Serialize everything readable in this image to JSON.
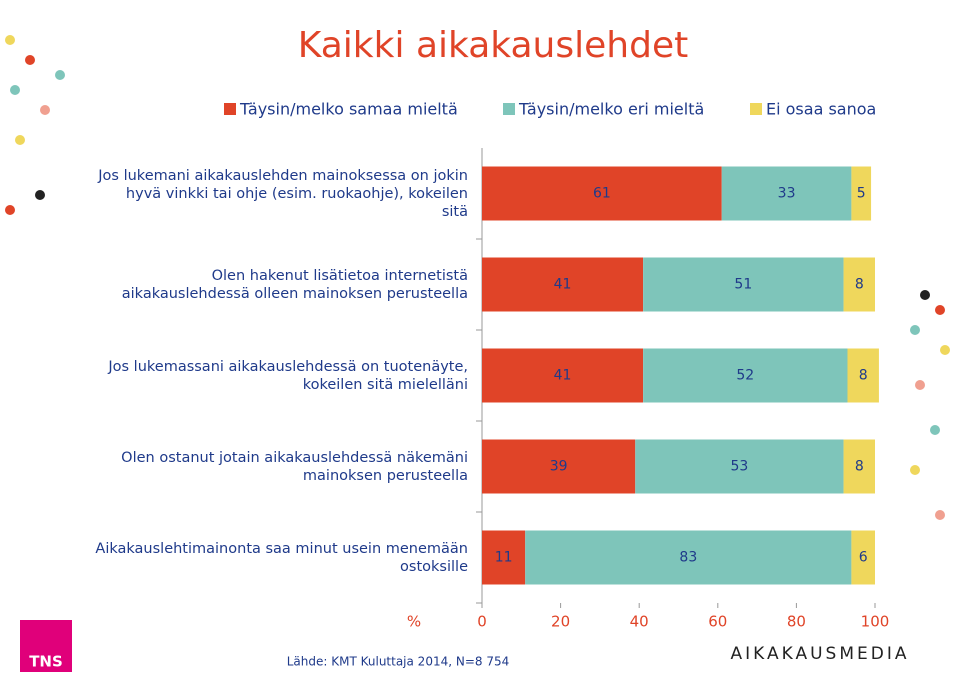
{
  "chart_data": {
    "type": "stacked-bar-horizontal",
    "title": "Kaikki aikakauslehdet",
    "categories": [
      "Jos lukemani aikakauslehden mainoksessa on jokin\nhyvä vinkki tai ohje (esim. ruokaohje), kokeilen\nsitä",
      "Olen hakenut lisätietoa internetistä\naikakauslehdessä olleen mainoksen perusteella",
      "Jos lukemassani aikakauslehdessä on tuotenäyte,\nkokeilen sitä mielelläni",
      "Olen ostanut jotain aikakauslehdessä näkemäni\nmainoksen perusteella",
      "Aikakauslehtimainonta saa minut usein menemään\nostoksille"
    ],
    "series": [
      {
        "name": "Täysin/melko samaa mieltä",
        "color": "#e04428",
        "values": [
          61,
          41,
          41,
          39,
          11
        ]
      },
      {
        "name": "Täysin/melko eri mieltä",
        "color": "#7ec5ba",
        "values": [
          33,
          51,
          52,
          53,
          83
        ]
      },
      {
        "name": "Ei osaa sanoa",
        "color": "#efd75c",
        "values": [
          5,
          8,
          8,
          8,
          6
        ]
      }
    ],
    "xlim": [
      0,
      100
    ],
    "xticks": [
      0,
      20,
      40,
      60,
      80,
      100
    ],
    "x_label": "%",
    "source": "Lähde: KMT Kuluttaja 2014, N=8 754",
    "logos": [
      "TNS",
      "AIKAKAUSMEDIA"
    ]
  }
}
